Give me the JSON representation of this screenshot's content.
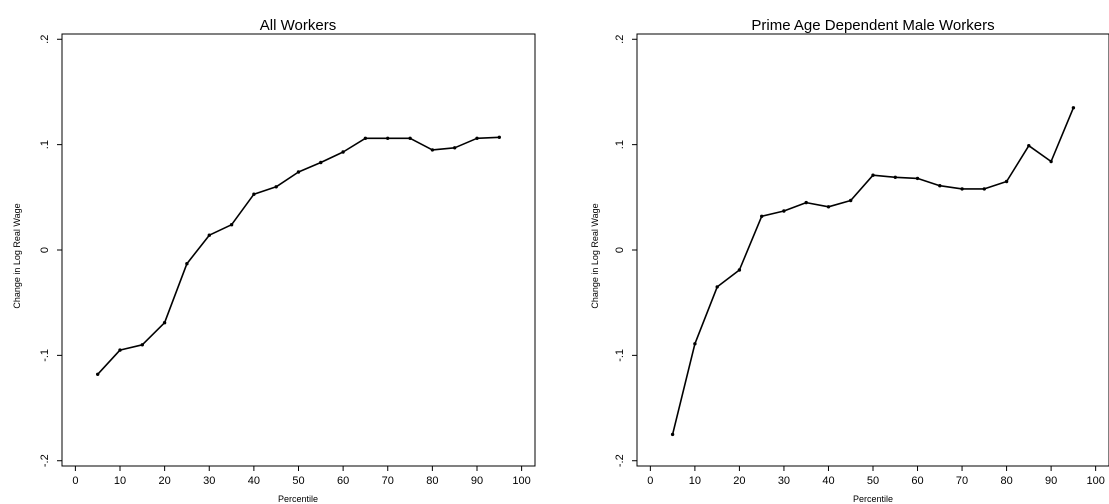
{
  "chart_data": [
    {
      "type": "line",
      "title": "All Workers",
      "xlabel": "Percentile",
      "ylabel": "Change in Log Real Wage",
      "x_ticks": [
        0,
        10,
        20,
        30,
        40,
        50,
        60,
        70,
        80,
        90,
        100
      ],
      "x_tick_labels": [
        "0",
        "10",
        "20",
        "30",
        "40",
        "50",
        "60",
        "70",
        "80",
        "90",
        "100"
      ],
      "y_ticks": [
        -0.2,
        -0.1,
        0,
        0.1,
        0.2
      ],
      "y_tick_labels": [
        "-.2",
        "-.1",
        "0",
        ".1",
        ".2"
      ],
      "xlim": [
        -3,
        103
      ],
      "ylim": [
        -0.205,
        0.205
      ],
      "grid": false,
      "series": [
        {
          "x": [
            5,
            10,
            15,
            20,
            25,
            30,
            35,
            40,
            45,
            50,
            55,
            60,
            65,
            70,
            75,
            80,
            85,
            90,
            95
          ],
          "y": [
            -0.118,
            -0.095,
            -0.09,
            -0.069,
            -0.013,
            0.014,
            0.024,
            0.053,
            0.06,
            0.074,
            0.083,
            0.093,
            0.106,
            0.106,
            0.106,
            0.095,
            0.097,
            0.106,
            0.107
          ]
        }
      ]
    },
    {
      "type": "line",
      "title": "Prime Age Dependent Male Workers",
      "xlabel": "Percentile",
      "ylabel": "Change in Log Real Wage",
      "x_ticks": [
        0,
        10,
        20,
        30,
        40,
        50,
        60,
        70,
        80,
        90,
        100
      ],
      "x_tick_labels": [
        "0",
        "10",
        "20",
        "30",
        "40",
        "50",
        "60",
        "70",
        "80",
        "90",
        "100"
      ],
      "y_ticks": [
        -0.2,
        -0.1,
        0,
        0.1,
        0.2
      ],
      "y_tick_labels": [
        "-.2",
        "-.1",
        "0",
        ".1",
        ".2"
      ],
      "xlim": [
        -3,
        103
      ],
      "ylim": [
        -0.205,
        0.205
      ],
      "grid": false,
      "series": [
        {
          "x": [
            5,
            10,
            15,
            20,
            25,
            30,
            35,
            40,
            45,
            50,
            55,
            60,
            65,
            70,
            75,
            80,
            85,
            90,
            95
          ],
          "y": [
            -0.175,
            -0.089,
            -0.035,
            -0.019,
            0.032,
            0.037,
            0.045,
            0.041,
            0.047,
            0.071,
            0.069,
            0.068,
            0.061,
            0.058,
            0.058,
            0.065,
            0.099,
            0.084,
            0.135
          ]
        }
      ]
    }
  ]
}
